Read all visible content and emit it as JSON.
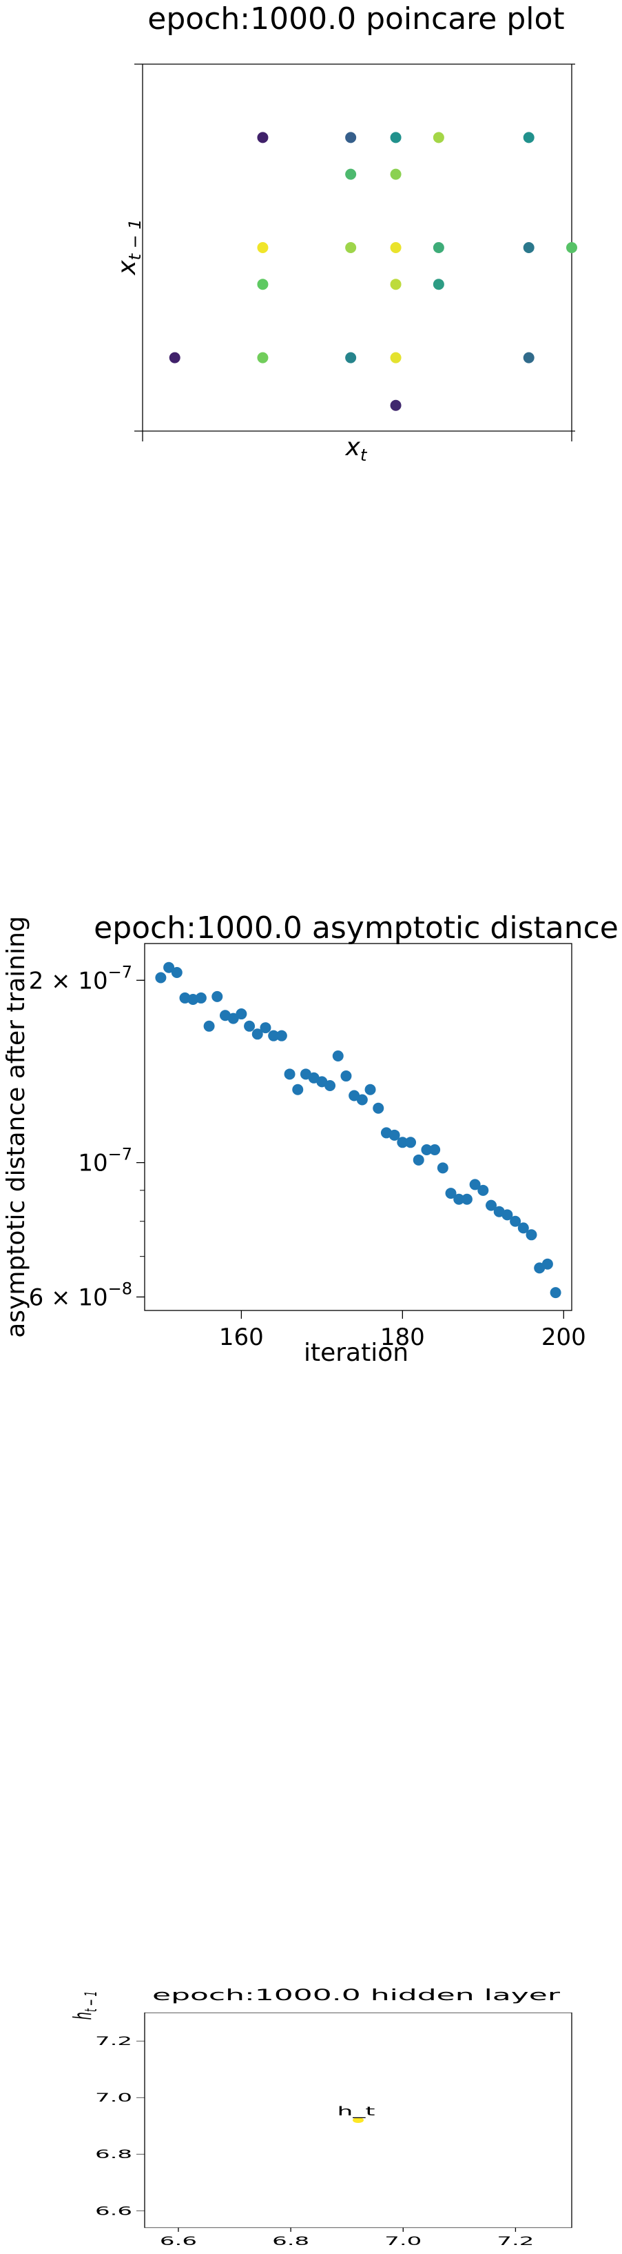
{
  "chart_data": [
    {
      "type": "scatter",
      "title": "epoch:1000.0 poincare plot",
      "xlabel": "x_t",
      "ylabel": "x_{t-1}",
      "xlim": [
        0,
        10
      ],
      "ylim": [
        0,
        10
      ],
      "ticks_visible": false,
      "grid": false,
      "colormap": "viridis",
      "points": [
        {
          "x": 0.75,
          "y": 2.0,
          "c": 0.1
        },
        {
          "x": 2.8,
          "y": 8.0,
          "c": 0.1
        },
        {
          "x": 2.8,
          "y": 5.0,
          "c": 0.98
        },
        {
          "x": 2.8,
          "y": 4.0,
          "c": 0.75
        },
        {
          "x": 2.8,
          "y": 2.0,
          "c": 0.78
        },
        {
          "x": 4.85,
          "y": 8.0,
          "c": 0.3
        },
        {
          "x": 4.85,
          "y": 7.0,
          "c": 0.68
        },
        {
          "x": 4.85,
          "y": 5.0,
          "c": 0.85
        },
        {
          "x": 4.85,
          "y": 2.0,
          "c": 0.45
        },
        {
          "x": 5.9,
          "y": 8.0,
          "c": 0.5
        },
        {
          "x": 5.9,
          "y": 7.0,
          "c": 0.82
        },
        {
          "x": 5.9,
          "y": 5.0,
          "c": 0.97
        },
        {
          "x": 5.9,
          "y": 4.0,
          "c": 0.9
        },
        {
          "x": 5.9,
          "y": 2.0,
          "c": 0.96
        },
        {
          "x": 5.9,
          "y": 0.7,
          "c": 0.12
        },
        {
          "x": 6.9,
          "y": 8.0,
          "c": 0.86
        },
        {
          "x": 6.9,
          "y": 5.0,
          "c": 0.62
        },
        {
          "x": 6.9,
          "y": 4.0,
          "c": 0.55
        },
        {
          "x": 9.0,
          "y": 8.0,
          "c": 0.5
        },
        {
          "x": 9.0,
          "y": 5.0,
          "c": 0.4
        },
        {
          "x": 9.0,
          "y": 2.0,
          "c": 0.35
        },
        {
          "x": 10.0,
          "y": 5.0,
          "c": 0.72
        }
      ]
    },
    {
      "type": "scatter",
      "title": "epoch:1000.0 asymptotic distance",
      "xlabel": "iteration",
      "ylabel": "asymptotic distance after training",
      "xlim": [
        148,
        201
      ],
      "ylim": [
        5.7e-08,
        2.3e-07
      ],
      "yscale": "log",
      "xticks": [
        160,
        180,
        200
      ],
      "xtick_labels": [
        "160",
        "180",
        "200"
      ],
      "yticks": [
        2e-07,
        1e-07,
        6e-08
      ],
      "ytick_base": [
        "2 × 10",
        "10",
        "6 × 10"
      ],
      "ytick_exp": [
        "−7",
        "−7",
        "−8"
      ],
      "color": "#1f77b4",
      "x": [
        150,
        151,
        152,
        153,
        154,
        155,
        156,
        157,
        158,
        159,
        160,
        161,
        162,
        163,
        164,
        165,
        166,
        167,
        168,
        169,
        170,
        171,
        172,
        173,
        174,
        175,
        176,
        177,
        178,
        179,
        180,
        181,
        182,
        183,
        184,
        185,
        186,
        187,
        188,
        189,
        190,
        191,
        192,
        193,
        194,
        195,
        196,
        197,
        198,
        199
      ],
      "y": [
        2.02e-07,
        2.1e-07,
        2.06e-07,
        1.87e-07,
        1.86e-07,
        1.87e-07,
        1.68e-07,
        1.88e-07,
        1.75e-07,
        1.73e-07,
        1.76e-07,
        1.68e-07,
        1.63e-07,
        1.67e-07,
        1.62e-07,
        1.62e-07,
        1.4e-07,
        1.32e-07,
        1.4e-07,
        1.38e-07,
        1.36e-07,
        1.34e-07,
        1.5e-07,
        1.39e-07,
        1.29e-07,
        1.27e-07,
        1.32e-07,
        1.23e-07,
        1.12e-07,
        1.11e-07,
        1.08e-07,
        1.08e-07,
        1.01e-07,
        1.05e-07,
        1.05e-07,
        9.8e-08,
        8.9e-08,
        8.7e-08,
        8.7e-08,
        9.2e-08,
        9e-08,
        8.5e-08,
        8.3e-08,
        8.2e-08,
        8e-08,
        7.8e-08,
        7.6e-08,
        6.7e-08,
        6.8e-08,
        6.1e-08
      ]
    },
    {
      "type": "scatter",
      "title": "epoch:1000.0 hidden layer",
      "xlabel": "h_t",
      "ylabel": "h_{t-1}",
      "xlim": [
        6.54,
        7.3
      ],
      "ylim": [
        6.54,
        7.3
      ],
      "xticks": [
        6.6,
        6.8,
        7.0,
        7.2
      ],
      "xtick_labels": [
        "6.6",
        "6.8",
        "7.0",
        "7.2"
      ],
      "yticks": [
        6.6,
        6.8,
        7.0,
        7.2
      ],
      "ytick_labels": [
        "6.6",
        "6.8",
        "7.0",
        "7.2"
      ],
      "points": [
        {
          "x": 6.92,
          "y": 6.92,
          "color": "#fde725"
        }
      ]
    }
  ]
}
